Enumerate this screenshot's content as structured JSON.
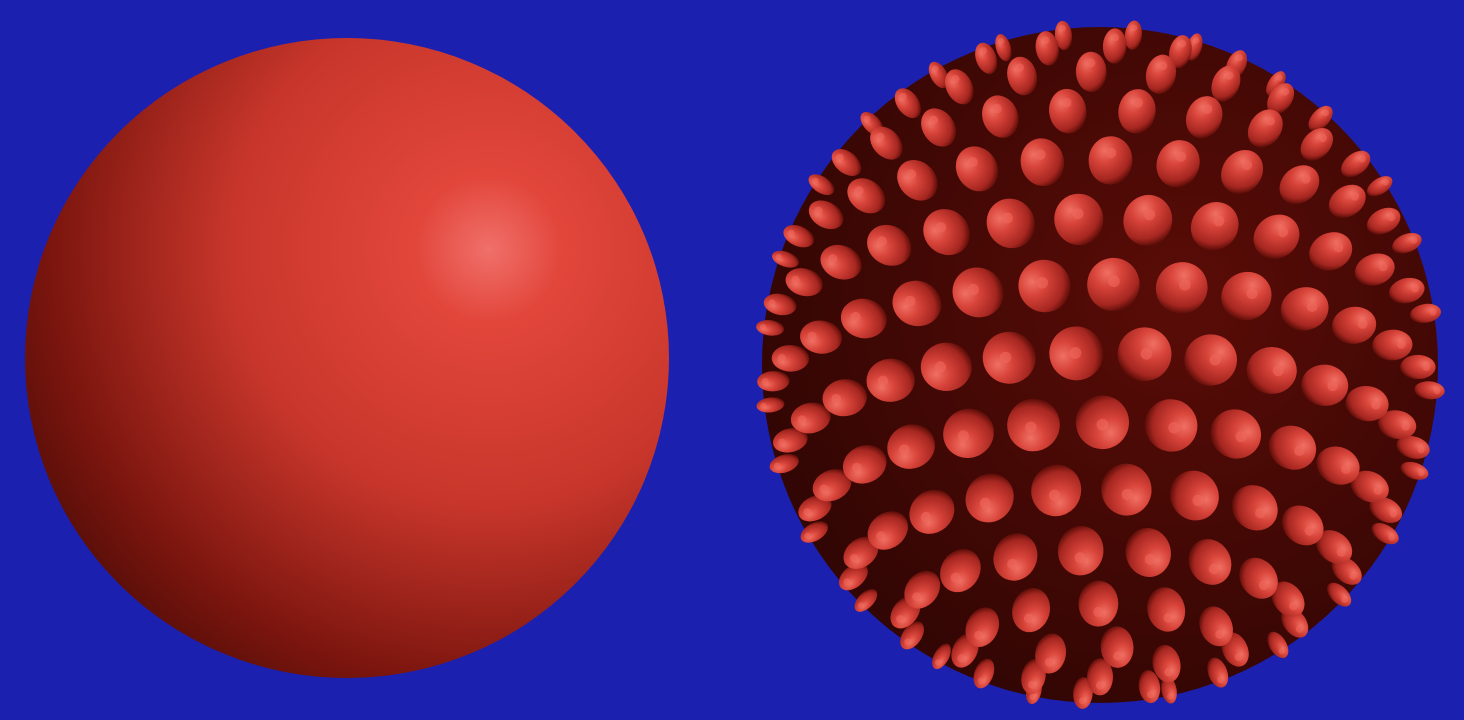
{
  "scene": {
    "background_color": "#1d22b8",
    "objects": [
      {
        "kind": "smooth-sphere",
        "color": "#c8362b",
        "highlight_color": "#f0706a",
        "shadow_color": "#3a0704"
      },
      {
        "kind": "spiky-sphere",
        "color": "#d23c30",
        "highlight_color": "#f06a5e",
        "shadow_color": "#2e0503",
        "spike_rows": 15
      }
    ]
  }
}
